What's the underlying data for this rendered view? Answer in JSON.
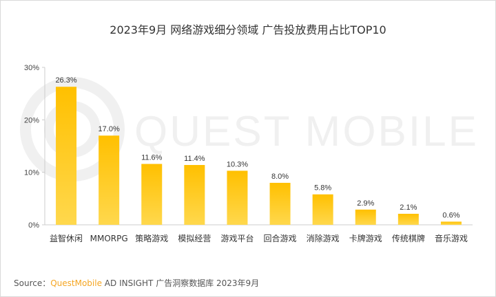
{
  "chart_data": {
    "type": "bar",
    "title": "2023年9月 网络游戏细分领域 广告投放费用占比TOP10",
    "categories": [
      "益智休闲",
      "MMORPG",
      "策略游戏",
      "模拟经营",
      "游戏平台",
      "回合游戏",
      "消除游戏",
      "卡牌游戏",
      "传统棋牌",
      "音乐游戏"
    ],
    "values": [
      26.3,
      17.0,
      11.6,
      11.4,
      10.3,
      8.0,
      5.8,
      2.9,
      2.1,
      0.6
    ],
    "data_labels": [
      "26.3%",
      "17.0%",
      "11.6%",
      "11.4%",
      "10.3%",
      "8.0%",
      "5.8%",
      "2.9%",
      "2.1%",
      "0.6%"
    ],
    "y_ticks": [
      0,
      10,
      20,
      30
    ],
    "y_tick_labels": [
      "0%",
      "10%",
      "20%",
      "30%"
    ],
    "ylim": [
      0,
      30
    ],
    "xlabel": "",
    "ylabel": "",
    "grid": false,
    "bar_color_top": "#FFC000",
    "bar_color_bottom": "#FFD84D"
  },
  "watermark": "QUEST MOBILE",
  "source": {
    "prefix": "Source：",
    "brand": "QuestMobile",
    "rest": " AD INSIGHT 广告洞察数据库 2023年9月"
  }
}
